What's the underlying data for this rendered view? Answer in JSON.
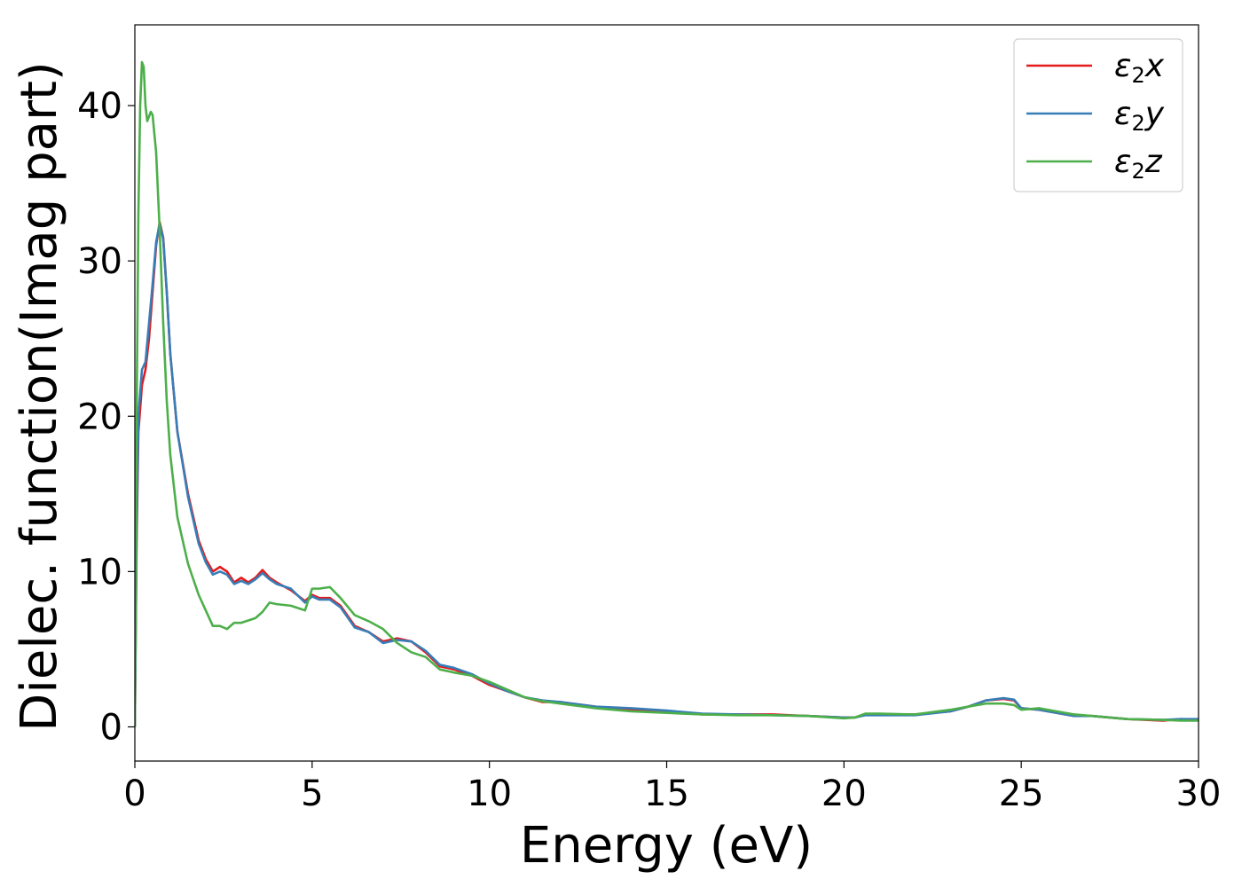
{
  "chart_data": {
    "type": "line",
    "xlabel": "Energy (eV)",
    "ylabel": "Dielec. function(Imag part)",
    "xlim": [
      0,
      30
    ],
    "ylim": [
      -2.2,
      45.2
    ],
    "xticks": [
      0,
      5,
      10,
      15,
      20,
      25,
      30
    ],
    "yticks": [
      0,
      10,
      20,
      30,
      40
    ],
    "grid": false,
    "legend_position": "top-right",
    "series": [
      {
        "name": "ε2x",
        "legend_main": "ε",
        "legend_sub": "2",
        "legend_tail": "x",
        "color": "#e41a1c",
        "points": [
          [
            0,
            0
          ],
          [
            0.05,
            12
          ],
          [
            0.1,
            19
          ],
          [
            0.2,
            22
          ],
          [
            0.3,
            23
          ],
          [
            0.4,
            25
          ],
          [
            0.5,
            28
          ],
          [
            0.6,
            31
          ],
          [
            0.7,
            32.5
          ],
          [
            0.8,
            31.5
          ],
          [
            0.9,
            28
          ],
          [
            1.0,
            24
          ],
          [
            1.2,
            19
          ],
          [
            1.5,
            15
          ],
          [
            1.8,
            12
          ],
          [
            2.0,
            10.8
          ],
          [
            2.2,
            10
          ],
          [
            2.4,
            10.3
          ],
          [
            2.6,
            10
          ],
          [
            2.8,
            9.3
          ],
          [
            3.0,
            9.6
          ],
          [
            3.2,
            9.3
          ],
          [
            3.4,
            9.6
          ],
          [
            3.6,
            10.1
          ],
          [
            3.8,
            9.6
          ],
          [
            4.0,
            9.3
          ],
          [
            4.4,
            8.8
          ],
          [
            4.8,
            8.1
          ],
          [
            5.0,
            8.5
          ],
          [
            5.2,
            8.3
          ],
          [
            5.5,
            8.3
          ],
          [
            5.8,
            7.8
          ],
          [
            6.2,
            6.5
          ],
          [
            6.6,
            6.1
          ],
          [
            7.0,
            5.5
          ],
          [
            7.4,
            5.7
          ],
          [
            7.8,
            5.5
          ],
          [
            8.2,
            4.8
          ],
          [
            8.6,
            3.9
          ],
          [
            9.0,
            3.7
          ],
          [
            9.5,
            3.3
          ],
          [
            10,
            2.7
          ],
          [
            10.5,
            2.3
          ],
          [
            11,
            1.9
          ],
          [
            11.5,
            1.6
          ],
          [
            12,
            1.6
          ],
          [
            13,
            1.3
          ],
          [
            14,
            1.1
          ],
          [
            15,
            1.0
          ],
          [
            16,
            0.8
          ],
          [
            17,
            0.8
          ],
          [
            18,
            0.8
          ],
          [
            19,
            0.7
          ],
          [
            20,
            0.6
          ],
          [
            20.3,
            0.6
          ],
          [
            20.6,
            0.8
          ],
          [
            21,
            0.8
          ],
          [
            22,
            0.8
          ],
          [
            23,
            1.0
          ],
          [
            23.5,
            1.3
          ],
          [
            24,
            1.7
          ],
          [
            24.5,
            1.8
          ],
          [
            24.8,
            1.7
          ],
          [
            25,
            1.2
          ],
          [
            25.5,
            1.1
          ],
          [
            26,
            0.9
          ],
          [
            26.5,
            0.7
          ],
          [
            27,
            0.7
          ],
          [
            28,
            0.5
          ],
          [
            29,
            0.4
          ],
          [
            29.5,
            0.5
          ],
          [
            30,
            0.45
          ]
        ]
      },
      {
        "name": "ε2y",
        "legend_main": "ε",
        "legend_sub": "2",
        "legend_tail": "y",
        "color": "#377eb8",
        "points": [
          [
            0,
            0
          ],
          [
            0.05,
            13
          ],
          [
            0.1,
            20
          ],
          [
            0.2,
            23
          ],
          [
            0.3,
            23.5
          ],
          [
            0.4,
            26
          ],
          [
            0.5,
            28.5
          ],
          [
            0.6,
            31.2
          ],
          [
            0.7,
            32.4
          ],
          [
            0.8,
            31.4
          ],
          [
            0.9,
            28
          ],
          [
            1.0,
            24
          ],
          [
            1.2,
            19
          ],
          [
            1.5,
            14.8
          ],
          [
            1.8,
            11.8
          ],
          [
            2.0,
            10.6
          ],
          [
            2.2,
            9.8
          ],
          [
            2.4,
            10
          ],
          [
            2.6,
            9.8
          ],
          [
            2.8,
            9.2
          ],
          [
            3.0,
            9.4
          ],
          [
            3.2,
            9.2
          ],
          [
            3.4,
            9.5
          ],
          [
            3.6,
            9.9
          ],
          [
            3.8,
            9.5
          ],
          [
            4.0,
            9.2
          ],
          [
            4.4,
            8.9
          ],
          [
            4.8,
            8.0
          ],
          [
            5.0,
            8.4
          ],
          [
            5.2,
            8.2
          ],
          [
            5.5,
            8.2
          ],
          [
            5.8,
            7.7
          ],
          [
            6.2,
            6.4
          ],
          [
            6.6,
            6.1
          ],
          [
            7.0,
            5.4
          ],
          [
            7.4,
            5.6
          ],
          [
            7.8,
            5.5
          ],
          [
            8.2,
            4.9
          ],
          [
            8.6,
            4.0
          ],
          [
            9.0,
            3.8
          ],
          [
            9.5,
            3.4
          ],
          [
            10,
            2.8
          ],
          [
            10.5,
            2.3
          ],
          [
            11,
            1.9
          ],
          [
            11.5,
            1.7
          ],
          [
            12,
            1.6
          ],
          [
            13,
            1.3
          ],
          [
            14,
            1.2
          ],
          [
            15,
            1.05
          ],
          [
            16,
            0.85
          ],
          [
            17,
            0.8
          ],
          [
            18,
            0.75
          ],
          [
            19,
            0.7
          ],
          [
            20,
            0.6
          ],
          [
            20.3,
            0.6
          ],
          [
            20.6,
            0.75
          ],
          [
            21,
            0.75
          ],
          [
            22,
            0.75
          ],
          [
            23,
            1.0
          ],
          [
            23.5,
            1.3
          ],
          [
            24,
            1.7
          ],
          [
            24.5,
            1.85
          ],
          [
            24.8,
            1.75
          ],
          [
            25,
            1.2
          ],
          [
            25.5,
            1.1
          ],
          [
            26,
            0.9
          ],
          [
            26.5,
            0.7
          ],
          [
            27,
            0.7
          ],
          [
            28,
            0.5
          ],
          [
            29,
            0.45
          ],
          [
            29.5,
            0.5
          ],
          [
            30,
            0.5
          ]
        ]
      },
      {
        "name": "ε2z",
        "legend_main": "ε",
        "legend_sub": "2",
        "legend_tail": "z",
        "color": "#4daf4a",
        "points": [
          [
            0,
            0
          ],
          [
            0.05,
            20
          ],
          [
            0.1,
            33
          ],
          [
            0.15,
            40
          ],
          [
            0.2,
            42.8
          ],
          [
            0.25,
            42.5
          ],
          [
            0.3,
            40
          ],
          [
            0.35,
            39
          ],
          [
            0.4,
            39.3
          ],
          [
            0.45,
            39.6
          ],
          [
            0.5,
            39.4
          ],
          [
            0.6,
            37
          ],
          [
            0.7,
            32
          ],
          [
            0.8,
            26
          ],
          [
            0.9,
            21
          ],
          [
            1.0,
            17.5
          ],
          [
            1.2,
            13.5
          ],
          [
            1.5,
            10.5
          ],
          [
            1.8,
            8.5
          ],
          [
            2.0,
            7.5
          ],
          [
            2.2,
            6.5
          ],
          [
            2.4,
            6.5
          ],
          [
            2.6,
            6.3
          ],
          [
            2.8,
            6.7
          ],
          [
            3.0,
            6.7
          ],
          [
            3.4,
            7.0
          ],
          [
            3.6,
            7.4
          ],
          [
            3.8,
            8.0
          ],
          [
            4.0,
            7.9
          ],
          [
            4.4,
            7.8
          ],
          [
            4.8,
            7.5
          ],
          [
            5.0,
            8.9
          ],
          [
            5.2,
            8.9
          ],
          [
            5.5,
            9.0
          ],
          [
            5.8,
            8.3
          ],
          [
            6.2,
            7.2
          ],
          [
            6.6,
            6.8
          ],
          [
            7.0,
            6.3
          ],
          [
            7.4,
            5.4
          ],
          [
            7.8,
            4.8
          ],
          [
            8.2,
            4.5
          ],
          [
            8.6,
            3.7
          ],
          [
            9.0,
            3.5
          ],
          [
            9.5,
            3.3
          ],
          [
            10,
            2.9
          ],
          [
            10.5,
            2.4
          ],
          [
            11,
            1.9
          ],
          [
            11.5,
            1.65
          ],
          [
            12,
            1.5
          ],
          [
            13,
            1.2
          ],
          [
            14,
            1.0
          ],
          [
            15,
            0.9
          ],
          [
            16,
            0.8
          ],
          [
            17,
            0.75
          ],
          [
            18,
            0.75
          ],
          [
            19,
            0.7
          ],
          [
            20,
            0.55
          ],
          [
            20.3,
            0.6
          ],
          [
            20.6,
            0.85
          ],
          [
            21,
            0.85
          ],
          [
            22,
            0.8
          ],
          [
            23,
            1.1
          ],
          [
            23.5,
            1.3
          ],
          [
            24,
            1.5
          ],
          [
            24.5,
            1.5
          ],
          [
            24.8,
            1.4
          ],
          [
            25,
            1.1
          ],
          [
            25.5,
            1.2
          ],
          [
            26,
            1.0
          ],
          [
            26.5,
            0.8
          ],
          [
            27,
            0.7
          ],
          [
            28,
            0.5
          ],
          [
            29,
            0.45
          ],
          [
            29.5,
            0.4
          ],
          [
            30,
            0.4
          ]
        ]
      }
    ]
  }
}
